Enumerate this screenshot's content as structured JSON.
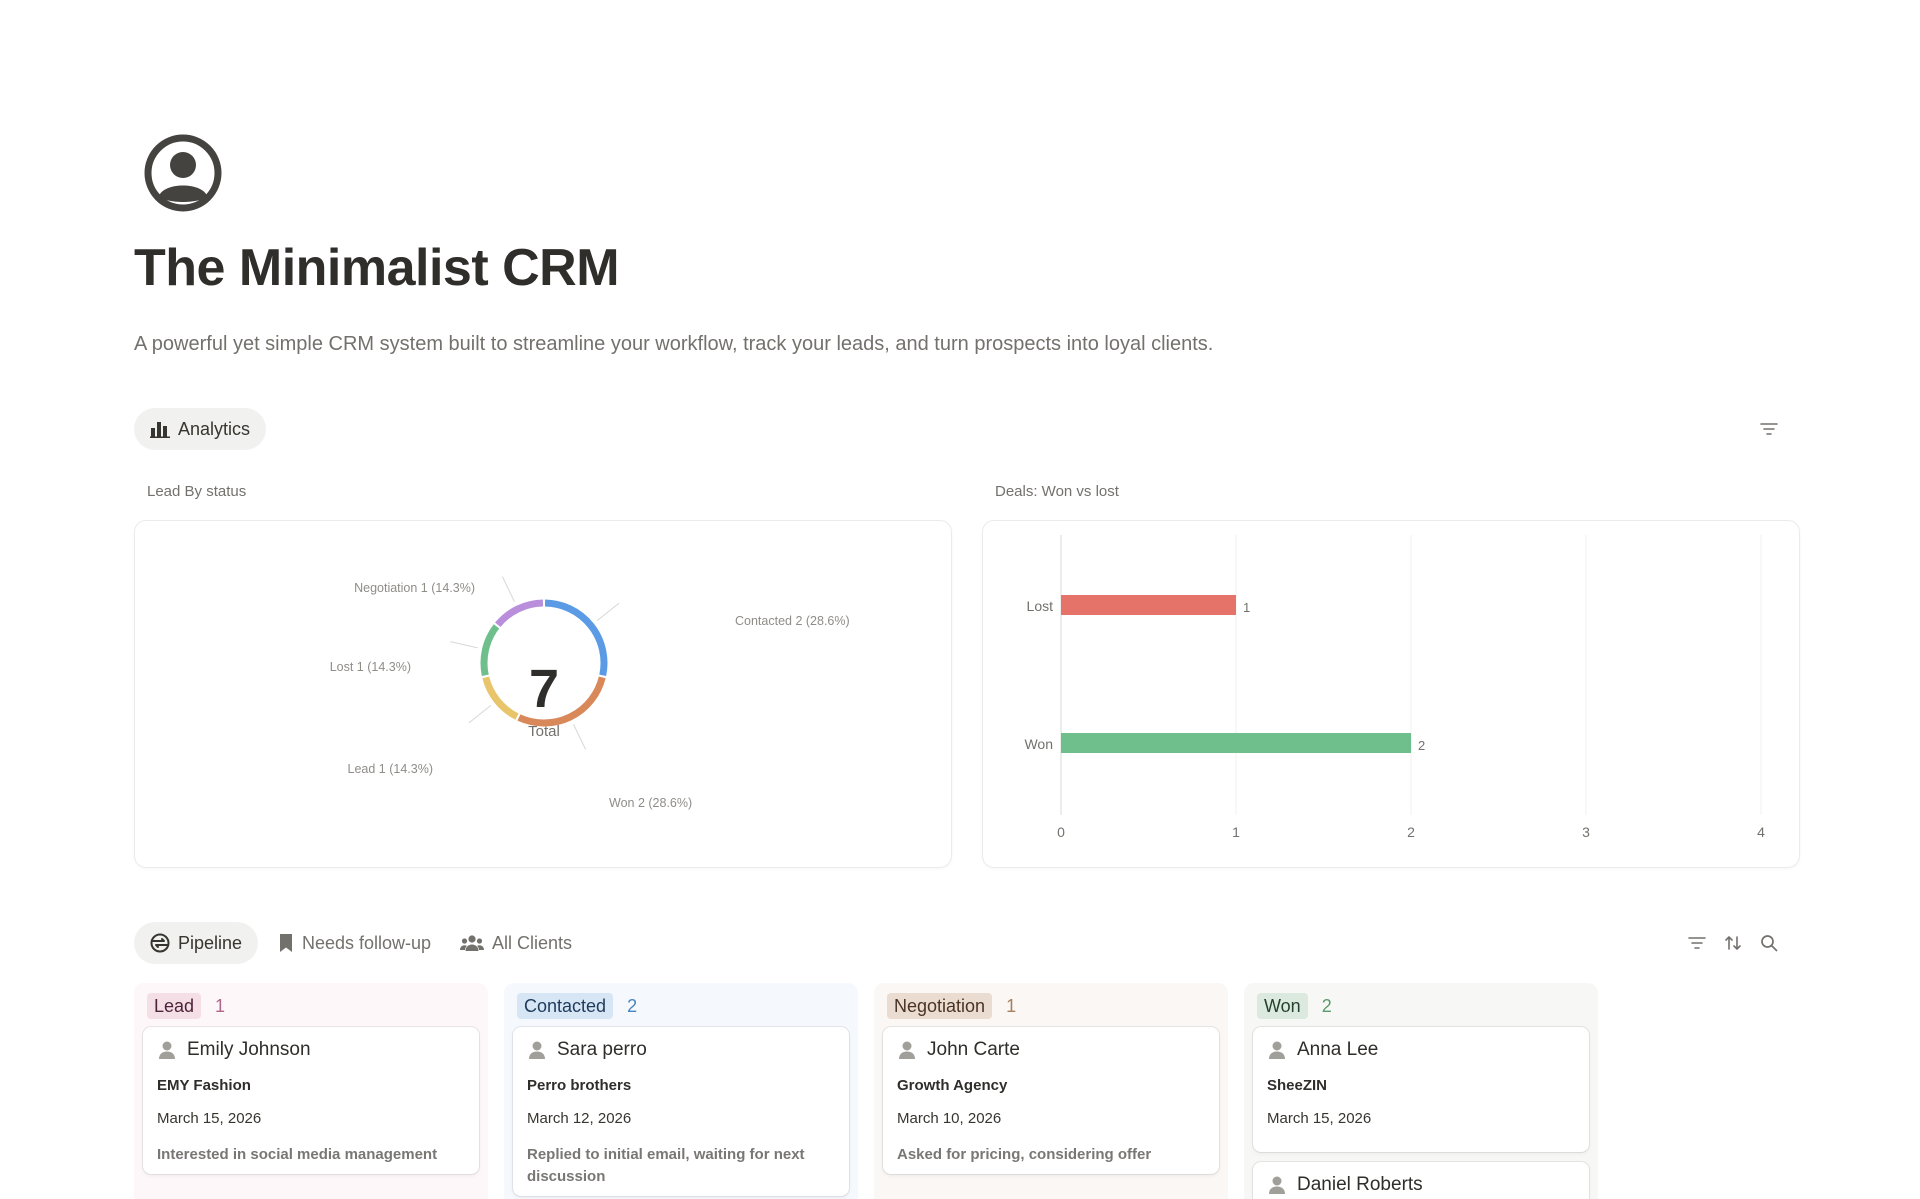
{
  "page": {
    "title": "The Minimalist CRM",
    "description": "A powerful yet simple CRM system built to streamline your workflow, track your leads, and turn prospects into loyal clients."
  },
  "analytics": {
    "tab_label": "Analytics"
  },
  "charts": {
    "lead_caption": "Lead By status",
    "deals_caption": "Deals: Won vs lost"
  },
  "chart_data": [
    {
      "type": "pie",
      "title": "Lead By status",
      "center_value": "7",
      "center_label": "Total",
      "slices": [
        {
          "label": "Contacted",
          "value": 2,
          "pct": "28.6%",
          "text": "Contacted  2 (28.6%)",
          "color": "#5b9be6"
        },
        {
          "label": "Won",
          "value": 2,
          "pct": "28.6%",
          "text": "Won  2 (28.6%)",
          "color": "#d9885a"
        },
        {
          "label": "Lead",
          "value": 1,
          "pct": "14.3%",
          "text": "Lead  1 (14.3%)",
          "color": "#e8c56a"
        },
        {
          "label": "Lost",
          "value": 1,
          "pct": "14.3%",
          "text": "Lost  1 (14.3%)",
          "color": "#6fbf8c"
        },
        {
          "label": "Negotiation",
          "value": 1,
          "pct": "14.3%",
          "text": "Negotiation  1 (14.3%)",
          "color": "#b98fdc"
        }
      ]
    },
    {
      "type": "bar",
      "orientation": "horizontal",
      "title": "Deals: Won vs lost",
      "categories": [
        "Lost",
        "Won"
      ],
      "values": [
        1,
        2
      ],
      "colors": [
        "#e6736a",
        "#6fbf8c"
      ],
      "xlim": [
        0,
        4
      ],
      "xticks": [
        "0",
        "1",
        "2",
        "3",
        "4"
      ],
      "grid": true
    }
  ],
  "views": {
    "pipeline": "Pipeline",
    "followup": "Needs follow-up",
    "clients": "All Clients"
  },
  "board": {
    "columns": [
      {
        "label": "Lead",
        "count": "1",
        "bg": "#fdf7f9",
        "pill_bg": "#f5dfe7",
        "pill_color": "#4c2337",
        "count_color": "#b1668b",
        "cards": [
          {
            "name": "Emily Johnson",
            "company": "EMY Fashion",
            "date": "March 15, 2026",
            "note": "Interested in social media management"
          }
        ]
      },
      {
        "label": "Contacted",
        "count": "2",
        "bg": "#f5f9fd",
        "pill_bg": "#d6e6f5",
        "pill_color": "#1f3a5a",
        "count_color": "#4a84bf",
        "cards": [
          {
            "name": "Sara perro",
            "company": "Perro brothers",
            "date": "March 12, 2026",
            "note": "Replied to initial email, waiting for next discussion"
          }
        ]
      },
      {
        "label": "Negotiation",
        "count": "1",
        "bg": "#faf7f5",
        "pill_bg": "#ebdcd2",
        "pill_color": "#4a3325",
        "count_color": "#a7805f",
        "cards": [
          {
            "name": "John Carte",
            "company": "Growth Agency",
            "date": "March 10, 2026",
            "note": "Asked for pricing, considering offer"
          }
        ]
      },
      {
        "label": "Won",
        "count": "2",
        "bg": "#f7f8f6",
        "pill_bg": "#dbe9df",
        "pill_color": "#26402e",
        "count_color": "#5a9b6b",
        "cards": [
          {
            "name": "Anna Lee",
            "company": "SheeZIN",
            "date": "March 15, 2026",
            "note": ""
          },
          {
            "name": "Daniel Roberts",
            "company": "",
            "date": "",
            "note": ""
          }
        ]
      }
    ]
  }
}
